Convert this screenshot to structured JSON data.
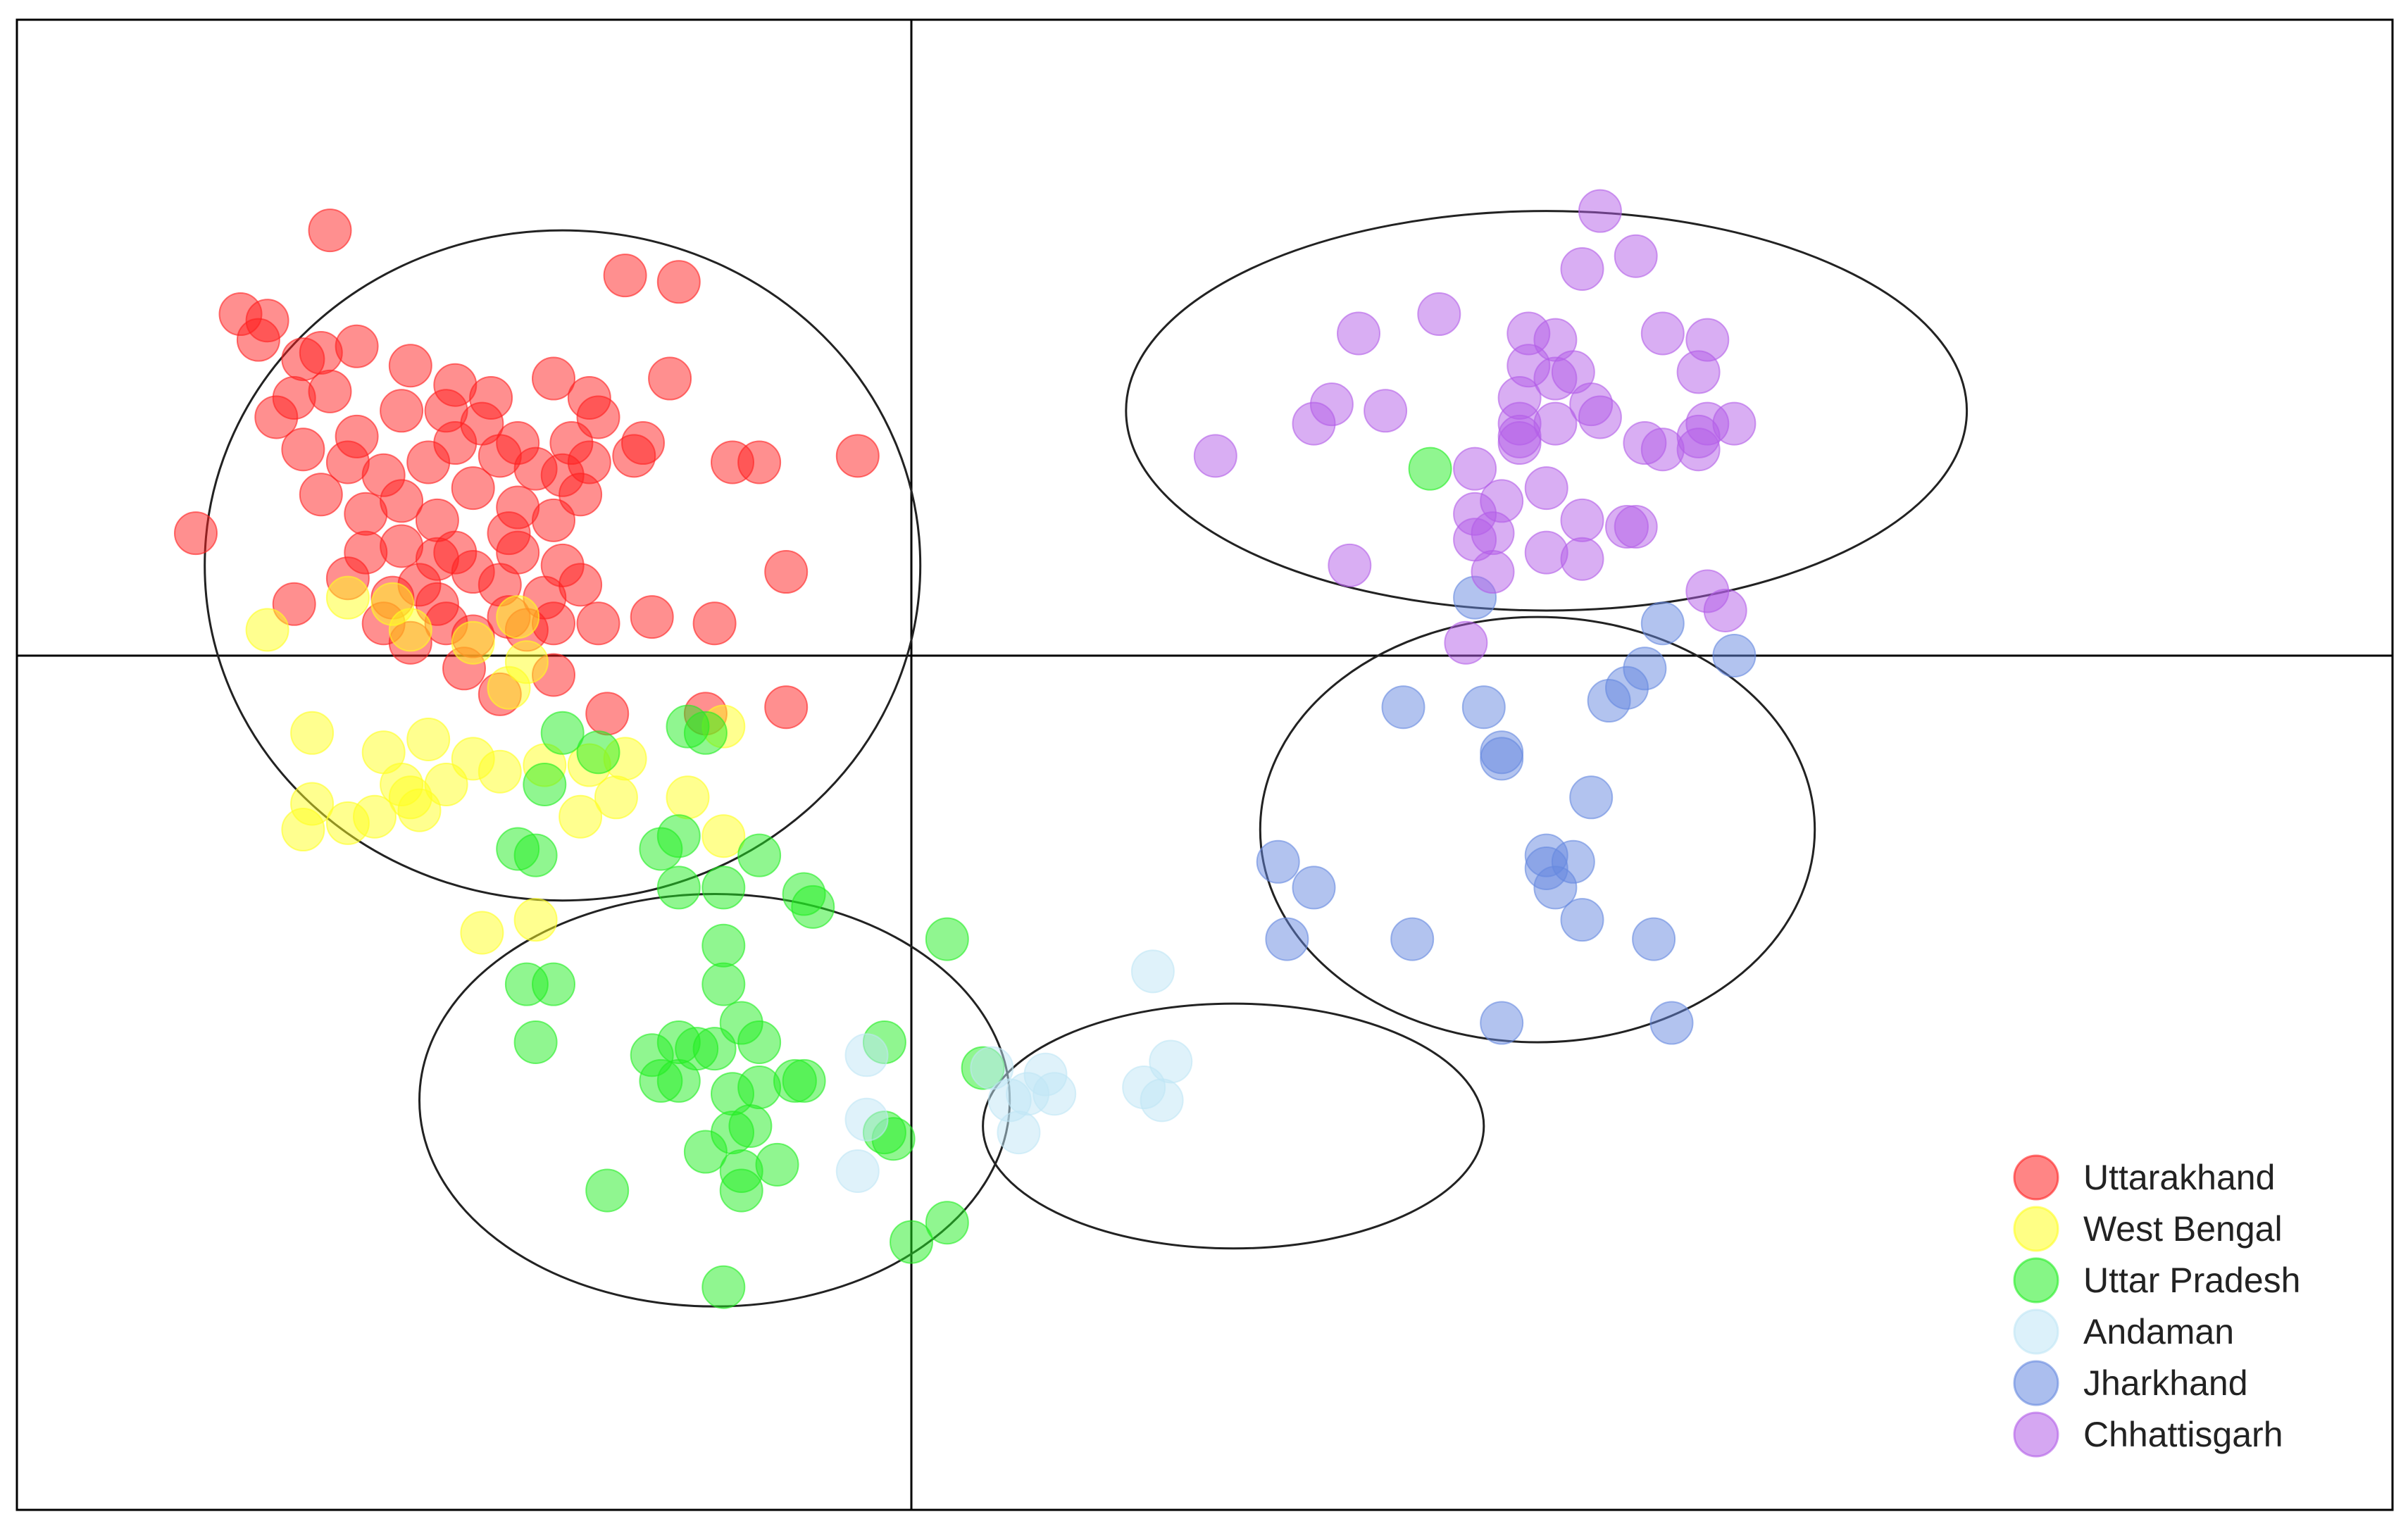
{
  "chart_data": {
    "type": "scatter",
    "title": "",
    "xlabel": "",
    "ylabel": "",
    "grid": false,
    "xlim": [
      -1,
      1
    ],
    "ylim": [
      -1,
      1
    ],
    "axis_lines_at": {
      "x": 0,
      "y": 0
    },
    "legend_position": "bottom-right",
    "series": [
      {
        "name": "Uttarakhand",
        "color": "#ff2020",
        "points": [
          [
            -0.65,
            0.66
          ],
          [
            -0.32,
            0.59
          ],
          [
            -0.26,
            0.58
          ],
          [
            -0.27,
            0.43
          ],
          [
            -0.75,
            0.53
          ],
          [
            -0.73,
            0.49
          ],
          [
            -0.66,
            0.47
          ],
          [
            -0.69,
            0.4
          ],
          [
            -0.65,
            0.41
          ],
          [
            -0.56,
            0.45
          ],
          [
            -0.51,
            0.42
          ],
          [
            -0.47,
            0.4
          ],
          [
            -0.4,
            0.43
          ],
          [
            -0.36,
            0.4
          ],
          [
            -0.3,
            0.33
          ],
          [
            -0.72,
            0.52
          ],
          [
            -0.68,
            0.46
          ],
          [
            -0.62,
            0.48
          ],
          [
            -0.71,
            0.37
          ],
          [
            -0.62,
            0.34
          ],
          [
            -0.57,
            0.38
          ],
          [
            -0.52,
            0.38
          ],
          [
            -0.48,
            0.36
          ],
          [
            -0.44,
            0.33
          ],
          [
            -0.38,
            0.33
          ],
          [
            -0.35,
            0.37
          ],
          [
            -0.31,
            0.31
          ],
          [
            -0.2,
            0.3
          ],
          [
            -0.17,
            0.3
          ],
          [
            -0.06,
            0.31
          ],
          [
            -0.68,
            0.32
          ],
          [
            -0.63,
            0.3
          ],
          [
            -0.59,
            0.28
          ],
          [
            -0.54,
            0.3
          ],
          [
            -0.51,
            0.33
          ],
          [
            -0.46,
            0.31
          ],
          [
            -0.42,
            0.29
          ],
          [
            -0.39,
            0.28
          ],
          [
            -0.36,
            0.3
          ],
          [
            -0.66,
            0.25
          ],
          [
            -0.61,
            0.22
          ],
          [
            -0.57,
            0.24
          ],
          [
            -0.53,
            0.21
          ],
          [
            -0.49,
            0.26
          ],
          [
            -0.44,
            0.23
          ],
          [
            -0.4,
            0.21
          ],
          [
            -0.37,
            0.25
          ],
          [
            -0.8,
            0.19
          ],
          [
            -0.61,
            0.16
          ],
          [
            -0.57,
            0.17
          ],
          [
            -0.53,
            0.15
          ],
          [
            -0.49,
            0.13
          ],
          [
            -0.44,
            0.16
          ],
          [
            -0.39,
            0.14
          ],
          [
            -0.63,
            0.12
          ],
          [
            -0.58,
            0.09
          ],
          [
            -0.53,
            0.08
          ],
          [
            -0.46,
            0.11
          ],
          [
            -0.41,
            0.09
          ],
          [
            -0.37,
            0.11
          ],
          [
            -0.69,
            0.08
          ],
          [
            -0.59,
            0.05
          ],
          [
            -0.52,
            0.05
          ],
          [
            -0.45,
            0.06
          ],
          [
            -0.4,
            0.05
          ],
          [
            -0.35,
            0.05
          ],
          [
            -0.29,
            0.06
          ],
          [
            -0.22,
            0.05
          ],
          [
            -0.14,
            0.13
          ],
          [
            -0.56,
            0.02
          ],
          [
            -0.49,
            0.03
          ],
          [
            -0.5,
            -0.02
          ],
          [
            -0.46,
            -0.06
          ],
          [
            -0.4,
            -0.03
          ],
          [
            -0.34,
            -0.09
          ],
          [
            -0.23,
            -0.09
          ],
          [
            -0.14,
            -0.08
          ],
          [
            -0.51,
            0.16
          ],
          [
            -0.45,
            0.19
          ],
          [
            -0.55,
            0.11
          ],
          [
            -0.43,
            0.04
          ]
        ]
      },
      {
        "name": "West Bengal",
        "color": "#ffff20",
        "points": [
          [
            -0.72,
            0.04
          ],
          [
            -0.63,
            0.09
          ],
          [
            -0.56,
            0.04
          ],
          [
            -0.49,
            0.02
          ],
          [
            -0.44,
            0.06
          ],
          [
            -0.58,
            0.08
          ],
          [
            -0.43,
            -0.01
          ],
          [
            -0.45,
            -0.05
          ],
          [
            -0.67,
            -0.12
          ],
          [
            -0.59,
            -0.15
          ],
          [
            -0.54,
            -0.13
          ],
          [
            -0.57,
            -0.2
          ],
          [
            -0.49,
            -0.16
          ],
          [
            -0.46,
            -0.18
          ],
          [
            -0.41,
            -0.17
          ],
          [
            -0.36,
            -0.17
          ],
          [
            -0.32,
            -0.16
          ],
          [
            -0.67,
            -0.23
          ],
          [
            -0.6,
            -0.25
          ],
          [
            -0.56,
            -0.22
          ],
          [
            -0.52,
            -0.2
          ],
          [
            -0.68,
            -0.27
          ],
          [
            -0.63,
            -0.26
          ],
          [
            -0.55,
            -0.24
          ],
          [
            -0.37,
            -0.25
          ],
          [
            -0.33,
            -0.22
          ],
          [
            -0.25,
            -0.22
          ],
          [
            -0.21,
            -0.11
          ],
          [
            -0.21,
            -0.28
          ],
          [
            -0.42,
            -0.41
          ],
          [
            -0.48,
            -0.43
          ]
        ]
      },
      {
        "name": "Uttar Pradesh",
        "color": "#22ee22",
        "points": [
          [
            0.58,
            0.29
          ],
          [
            -0.39,
            -0.12
          ],
          [
            -0.35,
            -0.15
          ],
          [
            -0.41,
            -0.2
          ],
          [
            -0.25,
            -0.11
          ],
          [
            -0.23,
            -0.12
          ],
          [
            -0.28,
            -0.3
          ],
          [
            -0.26,
            -0.28
          ],
          [
            -0.44,
            -0.3
          ],
          [
            -0.42,
            -0.31
          ],
          [
            -0.17,
            -0.31
          ],
          [
            -0.26,
            -0.36
          ],
          [
            -0.21,
            -0.36
          ],
          [
            -0.12,
            -0.37
          ],
          [
            -0.11,
            -0.39
          ],
          [
            -0.21,
            -0.45
          ],
          [
            -0.43,
            -0.51
          ],
          [
            -0.4,
            -0.51
          ],
          [
            -0.21,
            -0.51
          ],
          [
            -0.19,
            -0.57
          ],
          [
            -0.17,
            -0.6
          ],
          [
            -0.42,
            -0.6
          ],
          [
            -0.26,
            -0.6
          ],
          [
            -0.24,
            -0.61
          ],
          [
            -0.29,
            -0.62
          ],
          [
            -0.22,
            -0.61
          ],
          [
            -0.03,
            -0.6
          ],
          [
            -0.26,
            -0.66
          ],
          [
            -0.17,
            -0.67
          ],
          [
            -0.13,
            -0.66
          ],
          [
            -0.12,
            -0.66
          ],
          [
            -0.2,
            -0.68
          ],
          [
            -0.28,
            -0.66
          ],
          [
            0.04,
            -0.44
          ],
          [
            0.08,
            -0.64
          ],
          [
            -0.18,
            -0.73
          ],
          [
            -0.2,
            -0.74
          ],
          [
            -0.23,
            -0.77
          ],
          [
            -0.19,
            -0.8
          ],
          [
            -0.15,
            -0.79
          ],
          [
            -0.03,
            -0.74
          ],
          [
            -0.02,
            -0.75
          ],
          [
            -0.34,
            -0.83
          ],
          [
            -0.19,
            -0.83
          ],
          [
            0.04,
            -0.88
          ],
          [
            0.0,
            -0.91
          ],
          [
            -0.21,
            -0.98
          ]
        ]
      },
      {
        "name": "Andaman",
        "color": "#bfe6f5",
        "points": [
          [
            0.27,
            -0.49
          ],
          [
            -0.05,
            -0.62
          ],
          [
            0.09,
            -0.64
          ],
          [
            0.29,
            -0.63
          ],
          [
            0.15,
            -0.65
          ],
          [
            0.16,
            -0.68
          ],
          [
            0.26,
            -0.67
          ],
          [
            0.28,
            -0.69
          ],
          [
            0.13,
            -0.68
          ],
          [
            0.11,
            -0.69
          ],
          [
            -0.05,
            -0.72
          ],
          [
            0.12,
            -0.74
          ],
          [
            -0.06,
            -0.8
          ]
        ]
      },
      {
        "name": "Jharkhand",
        "color": "#6688e0",
        "points": [
          [
            0.63,
            0.09
          ],
          [
            0.84,
            0.05
          ],
          [
            0.92,
            0.0
          ],
          [
            0.82,
            -0.02
          ],
          [
            0.8,
            -0.05
          ],
          [
            0.78,
            -0.07
          ],
          [
            0.55,
            -0.08
          ],
          [
            0.64,
            -0.08
          ],
          [
            0.66,
            -0.15
          ],
          [
            0.66,
            -0.16
          ],
          [
            0.76,
            -0.22
          ],
          [
            0.41,
            -0.32
          ],
          [
            0.45,
            -0.36
          ],
          [
            0.71,
            -0.31
          ],
          [
            0.71,
            -0.33
          ],
          [
            0.74,
            -0.32
          ],
          [
            0.72,
            -0.36
          ],
          [
            0.75,
            -0.41
          ],
          [
            0.42,
            -0.44
          ],
          [
            0.56,
            -0.44
          ],
          [
            0.83,
            -0.44
          ],
          [
            0.66,
            -0.57
          ],
          [
            0.85,
            -0.57
          ]
        ]
      },
      {
        "name": "Chhattisgarh",
        "color": "#b35ee8",
        "points": [
          [
            0.77,
            0.69
          ],
          [
            0.81,
            0.62
          ],
          [
            0.75,
            0.6
          ],
          [
            0.59,
            0.53
          ],
          [
            0.5,
            0.5
          ],
          [
            0.69,
            0.5
          ],
          [
            0.72,
            0.49
          ],
          [
            0.84,
            0.5
          ],
          [
            0.89,
            0.49
          ],
          [
            0.69,
            0.45
          ],
          [
            0.88,
            0.44
          ],
          [
            0.74,
            0.44
          ],
          [
            0.72,
            0.43
          ],
          [
            0.68,
            0.4
          ],
          [
            0.76,
            0.39
          ],
          [
            0.47,
            0.39
          ],
          [
            0.53,
            0.38
          ],
          [
            0.72,
            0.36
          ],
          [
            0.77,
            0.37
          ],
          [
            0.68,
            0.36
          ],
          [
            0.45,
            0.36
          ],
          [
            0.68,
            0.34
          ],
          [
            0.68,
            0.33
          ],
          [
            0.82,
            0.33
          ],
          [
            0.89,
            0.36
          ],
          [
            0.92,
            0.36
          ],
          [
            0.88,
            0.32
          ],
          [
            0.84,
            0.32
          ],
          [
            0.88,
            0.34
          ],
          [
            0.34,
            0.31
          ],
          [
            0.63,
            0.29
          ],
          [
            0.71,
            0.26
          ],
          [
            0.66,
            0.24
          ],
          [
            0.63,
            0.22
          ],
          [
            0.75,
            0.21
          ],
          [
            0.63,
            0.18
          ],
          [
            0.65,
            0.19
          ],
          [
            0.8,
            0.2
          ],
          [
            0.81,
            0.2
          ],
          [
            0.71,
            0.16
          ],
          [
            0.75,
            0.15
          ],
          [
            0.49,
            0.14
          ],
          [
            0.65,
            0.13
          ],
          [
            0.89,
            0.1
          ],
          [
            0.91,
            0.07
          ],
          [
            0.62,
            0.02
          ]
        ]
      }
    ],
    "ellipses": [
      {
        "center": [
          -0.39,
          0.14
        ],
        "radii": [
          0.4,
          0.52
        ]
      },
      {
        "center": [
          0.71,
          0.38
        ],
        "radii": [
          0.47,
          0.31
        ]
      },
      {
        "center": [
          0.7,
          -0.27
        ],
        "radii": [
          0.31,
          0.33
        ]
      },
      {
        "center": [
          -0.22,
          -0.69
        ],
        "radii": [
          0.33,
          0.32
        ]
      },
      {
        "center": [
          0.36,
          -0.73
        ],
        "radii": [
          0.28,
          0.19
        ]
      }
    ]
  }
}
